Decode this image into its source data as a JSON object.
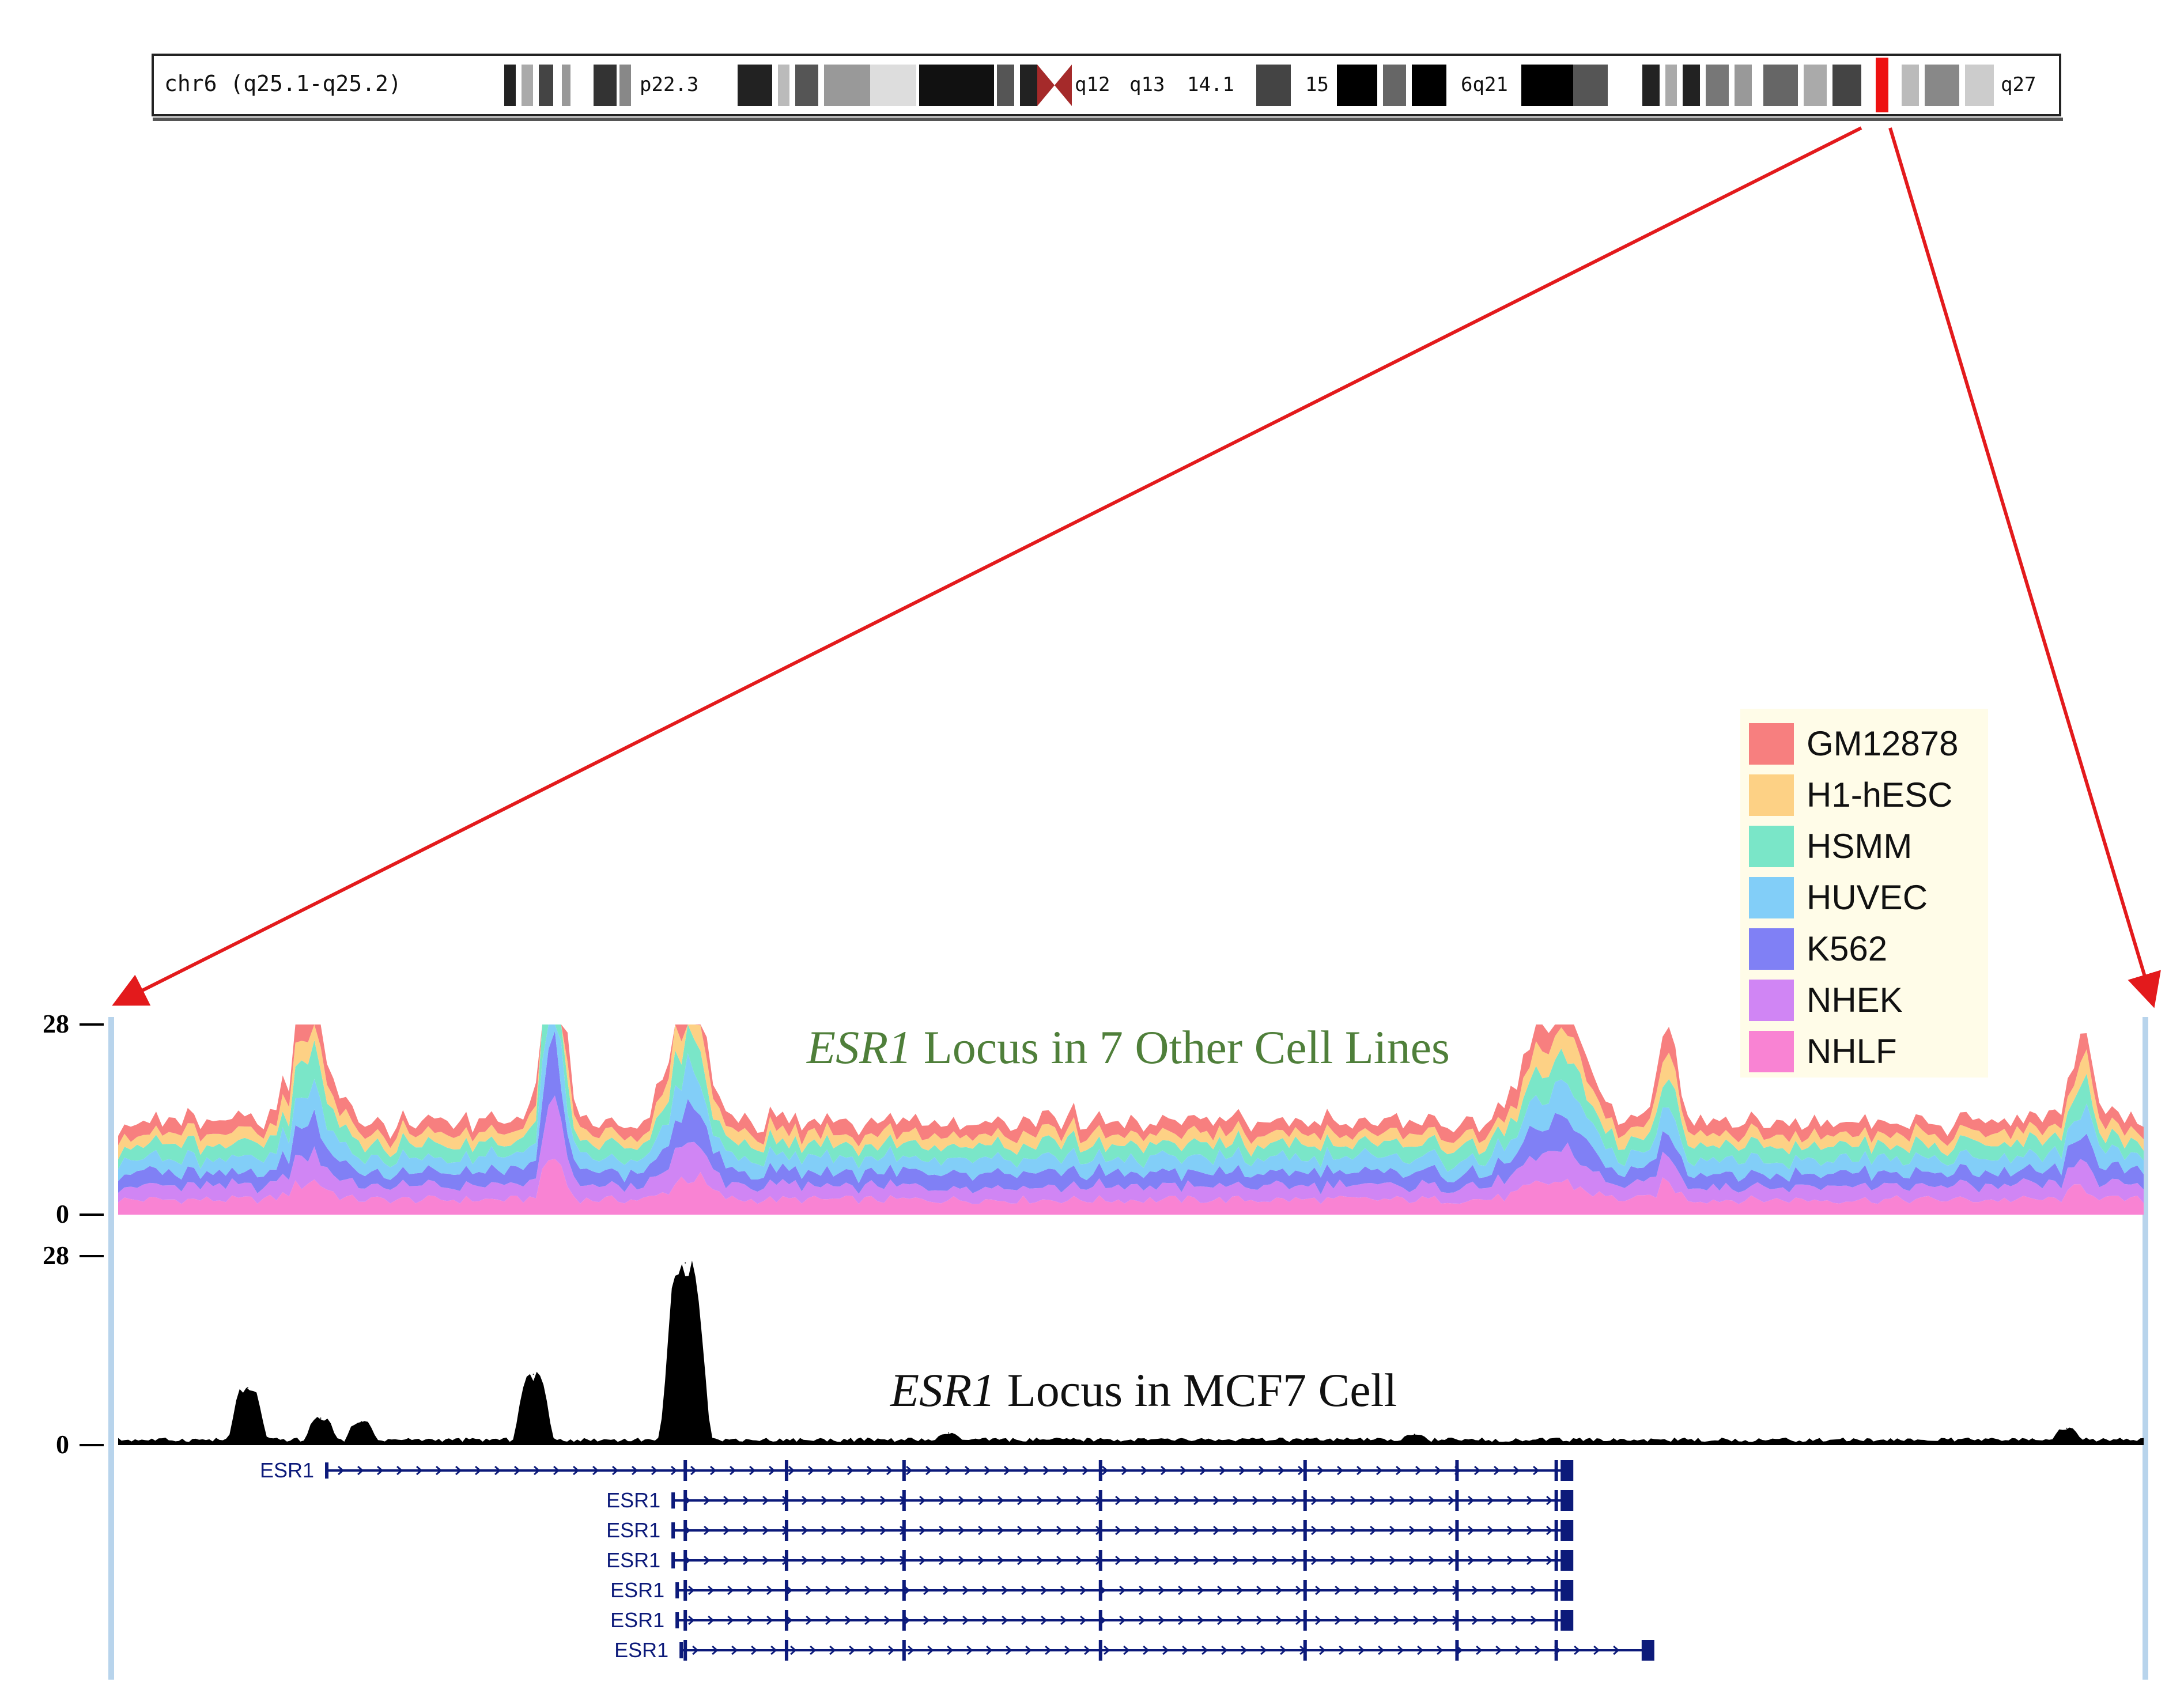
{
  "ideogram": {
    "label": "chr6 (q25.1-q25.2)",
    "bands": [
      {
        "label": "p22.3"
      },
      {
        "label": "q12"
      },
      {
        "label": "q13"
      },
      {
        "label": "14.1"
      },
      {
        "label": "15"
      },
      {
        "label": "6q21"
      },
      {
        "label": "q27"
      }
    ],
    "highlight_color": "#ee1111",
    "centromere_color": "#a52a2a"
  },
  "zoom_arrow_color": "#e31a1c",
  "track_top": {
    "title_italic": "ESR1",
    "title_rest": " Locus in 7 Other Cell Lines",
    "title_color": "#4f7f3a",
    "ymax_label": "28",
    "ymin_label": "0"
  },
  "track_bottom": {
    "title_italic": "ESR1",
    "title_rest": " Locus in MCF7 Cell",
    "title_color": "#111111",
    "ymax_label": "28",
    "ymin_label": "0"
  },
  "legend": {
    "items": [
      {
        "name": "GM12878",
        "color": "#f77f7f"
      },
      {
        "name": "H1-hESC",
        "color": "#fdd185"
      },
      {
        "name": "HSMM",
        "color": "#7ae6c8"
      },
      {
        "name": "HUVEC",
        "color": "#82cef8"
      },
      {
        "name": "K562",
        "color": "#8080f5"
      },
      {
        "name": "NHEK",
        "color": "#d085f4"
      },
      {
        "name": "NHLF",
        "color": "#f983d3"
      }
    ]
  },
  "chart_data": {
    "type": "area",
    "ylim": [
      0,
      28
    ],
    "x_range": [
      0,
      100
    ],
    "stacked_series": [
      {
        "name": "NHLF",
        "baseline": 2.2
      },
      {
        "name": "NHEK",
        "baseline": 2.0
      },
      {
        "name": "K562",
        "baseline": 2.0
      },
      {
        "name": "HUVEC",
        "baseline": 2.1
      },
      {
        "name": "HSMM",
        "baseline": 2.0
      },
      {
        "name": "H1-hESC",
        "baseline": 1.6
      },
      {
        "name": "GM12878",
        "baseline": 1.8
      }
    ],
    "top_peaks": [
      {
        "center": 9.5,
        "width": 1.6,
        "height": 1.3
      },
      {
        "center": 21.5,
        "width": 0.9,
        "height": 3.0
      },
      {
        "center": 28.2,
        "width": 1.6,
        "height": 1.6
      },
      {
        "center": 71.0,
        "width": 2.6,
        "height": 1.2
      },
      {
        "center": 76.5,
        "width": 0.9,
        "height": 1.1
      },
      {
        "center": 97.0,
        "width": 1.0,
        "height": 0.9
      }
    ],
    "mcf7_peaks": [
      {
        "x": 6.4,
        "value": 8.5
      },
      {
        "x": 10.0,
        "value": 4.0
      },
      {
        "x": 12.0,
        "value": 3.5
      },
      {
        "x": 20.5,
        "value": 10.5
      },
      {
        "x": 28.0,
        "value": 27.0
      },
      {
        "x": 41.0,
        "value": 1.8
      },
      {
        "x": 64.0,
        "value": 1.6
      },
      {
        "x": 96.2,
        "value": 2.5
      }
    ],
    "mcf7_baseline": 0.8
  },
  "genes": {
    "name": "ESR1",
    "isoforms": [
      {
        "label": "ESR1",
        "start": 10.3,
        "end": 71.5
      },
      {
        "label": "ESR1",
        "start": 27.4,
        "end": 71.5
      },
      {
        "label": "ESR1",
        "start": 27.4,
        "end": 71.5
      },
      {
        "label": "ESR1",
        "start": 27.4,
        "end": 71.5
      },
      {
        "label": "ESR1",
        "start": 27.6,
        "end": 71.5
      },
      {
        "label": "ESR1",
        "start": 27.6,
        "end": 71.5
      },
      {
        "label": "ESR1",
        "start": 27.8,
        "end": 75.5
      }
    ],
    "exons": [
      28.0,
      33.0,
      38.8,
      48.5,
      58.6,
      66.1,
      71.0
    ],
    "color": "#0c1a7a"
  }
}
